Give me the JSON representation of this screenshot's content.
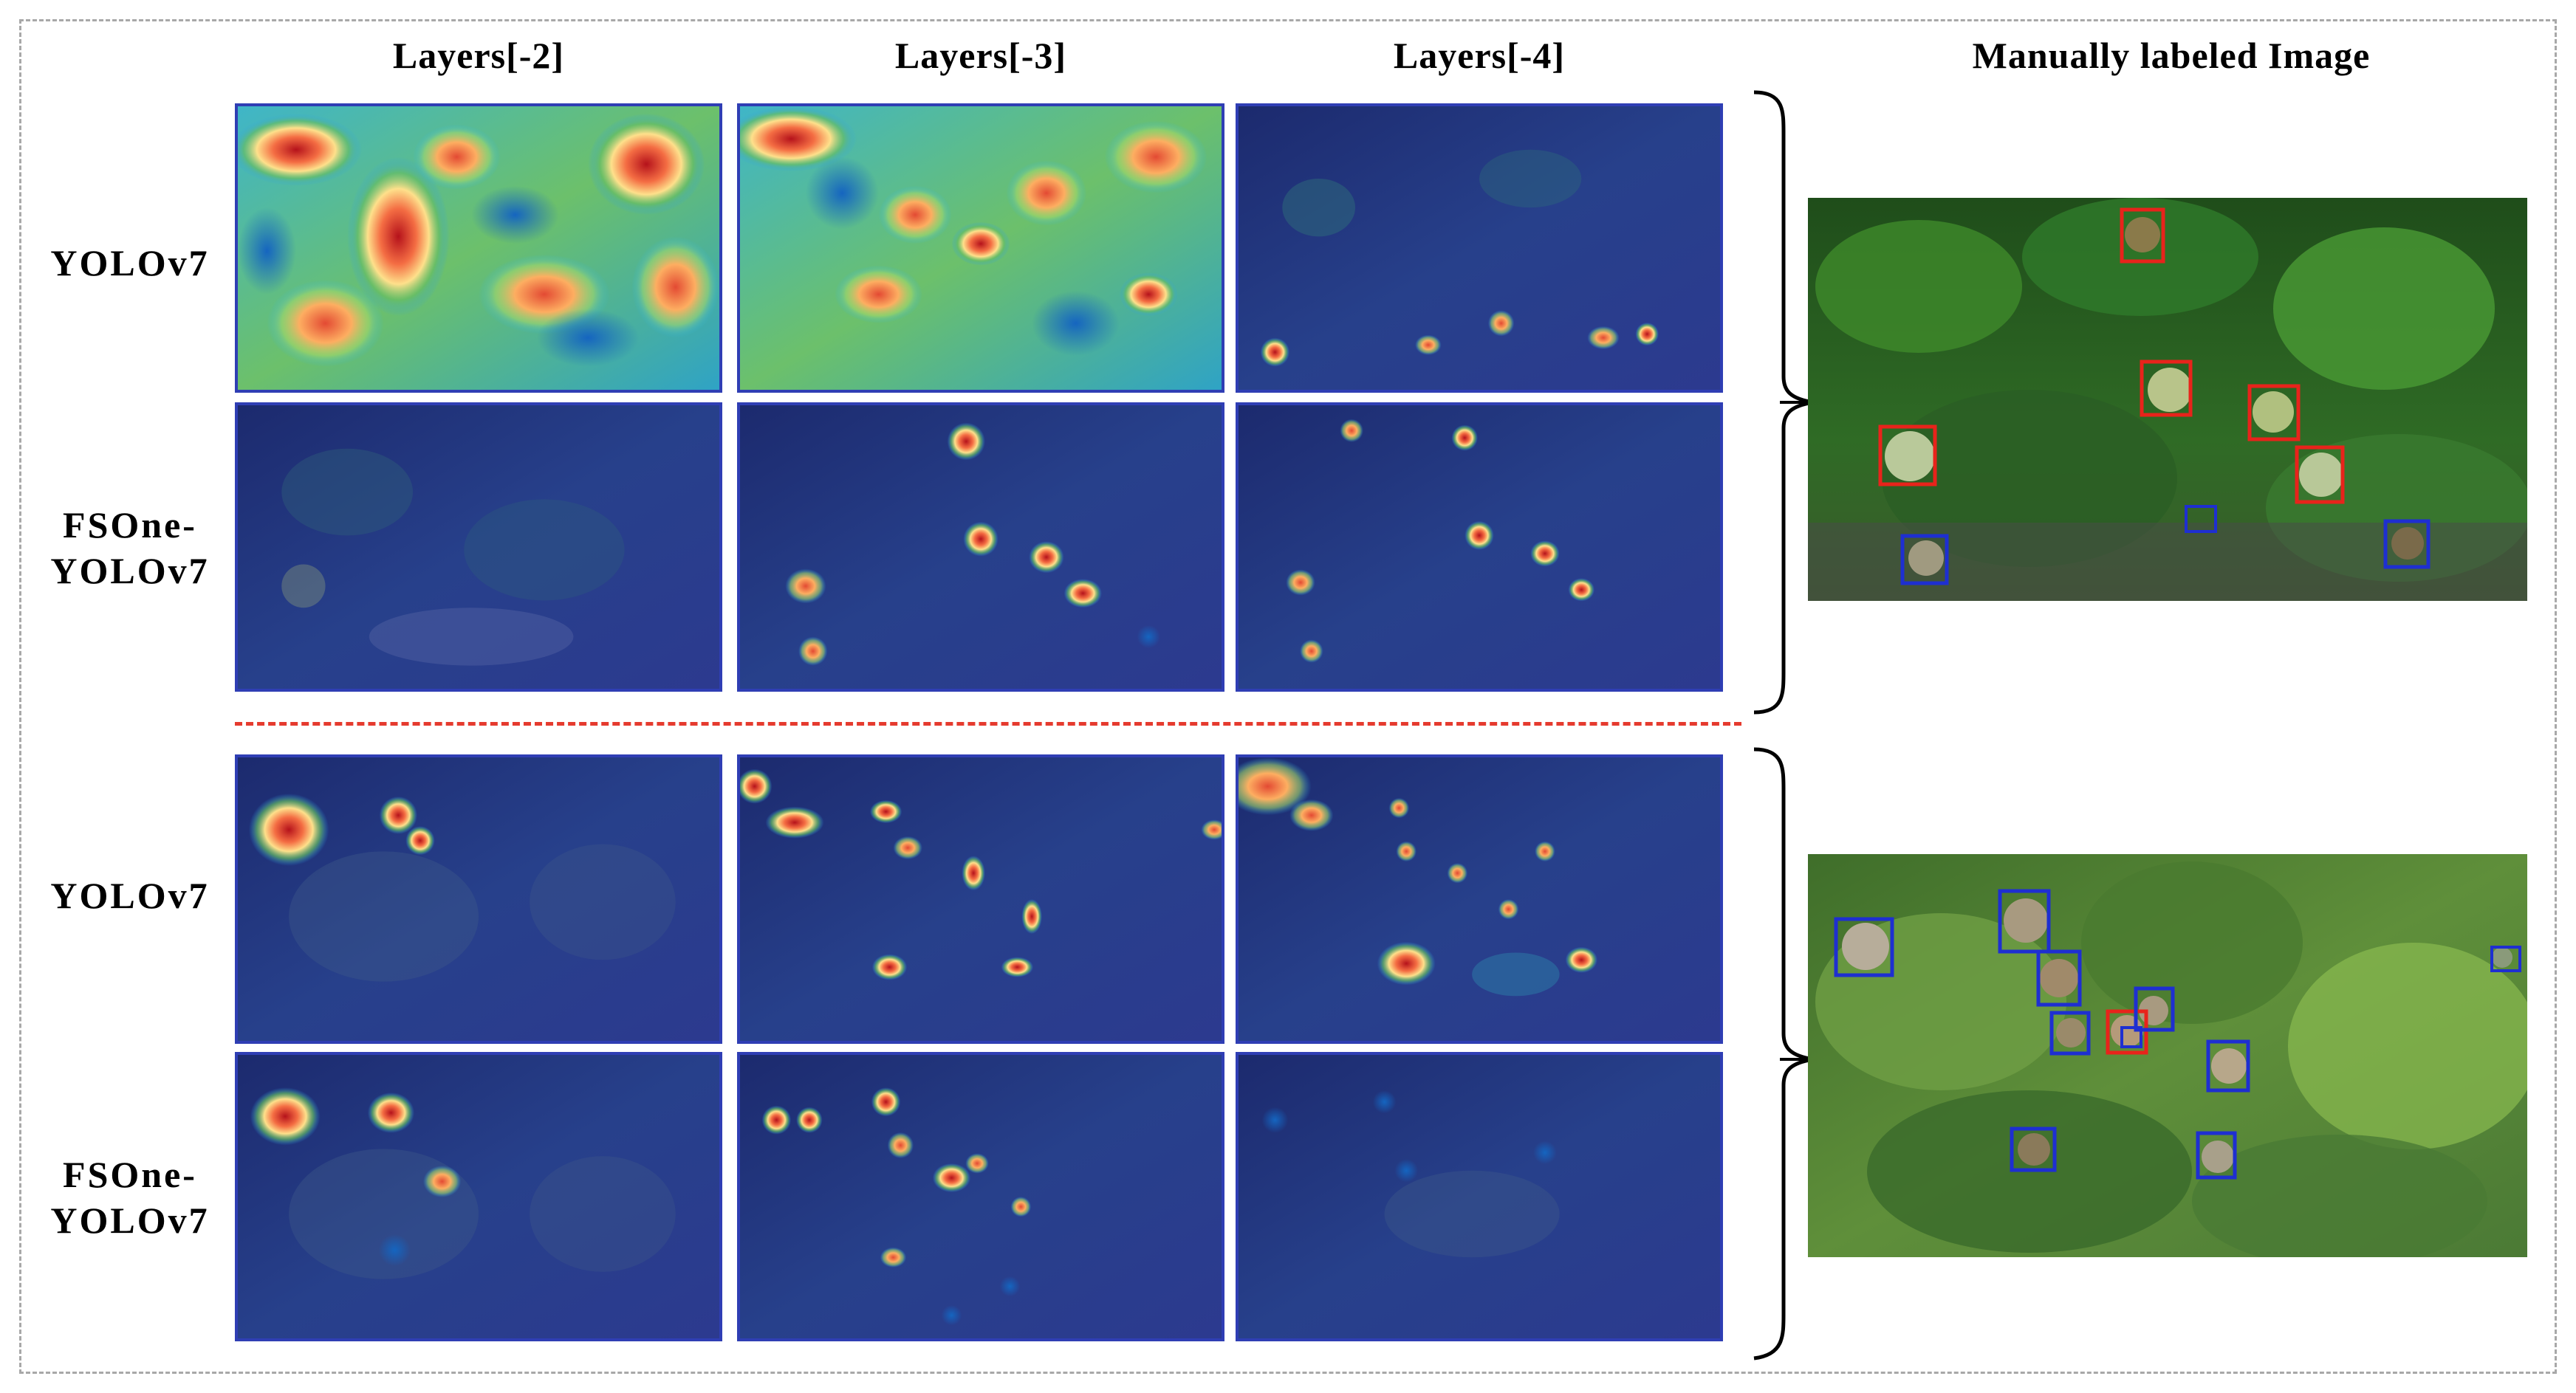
{
  "columns": [
    "Layers[-2]",
    "Layers[-3]",
    "Layers[-4]",
    "Manually labeled Image"
  ],
  "groups": [
    {
      "rows": [
        {
          "label_line1": "YOLOv7",
          "label_line2": ""
        },
        {
          "label_line1": "FSOne-",
          "label_line2": "YOLOv7"
        }
      ]
    },
    {
      "rows": [
        {
          "label_line1": "YOLOv7",
          "label_line2": ""
        },
        {
          "label_line1": "FSOne-",
          "label_line2": "YOLOv7"
        }
      ]
    }
  ],
  "colors": {
    "heat_high": "#d7191c",
    "heat_mid": "#fdae61",
    "heat_low": "#1a9641",
    "background_blue": "#1f2c8a",
    "box_red": "#e8231b",
    "box_blue": "#1e2fd1",
    "divider": "#e53b2f"
  }
}
